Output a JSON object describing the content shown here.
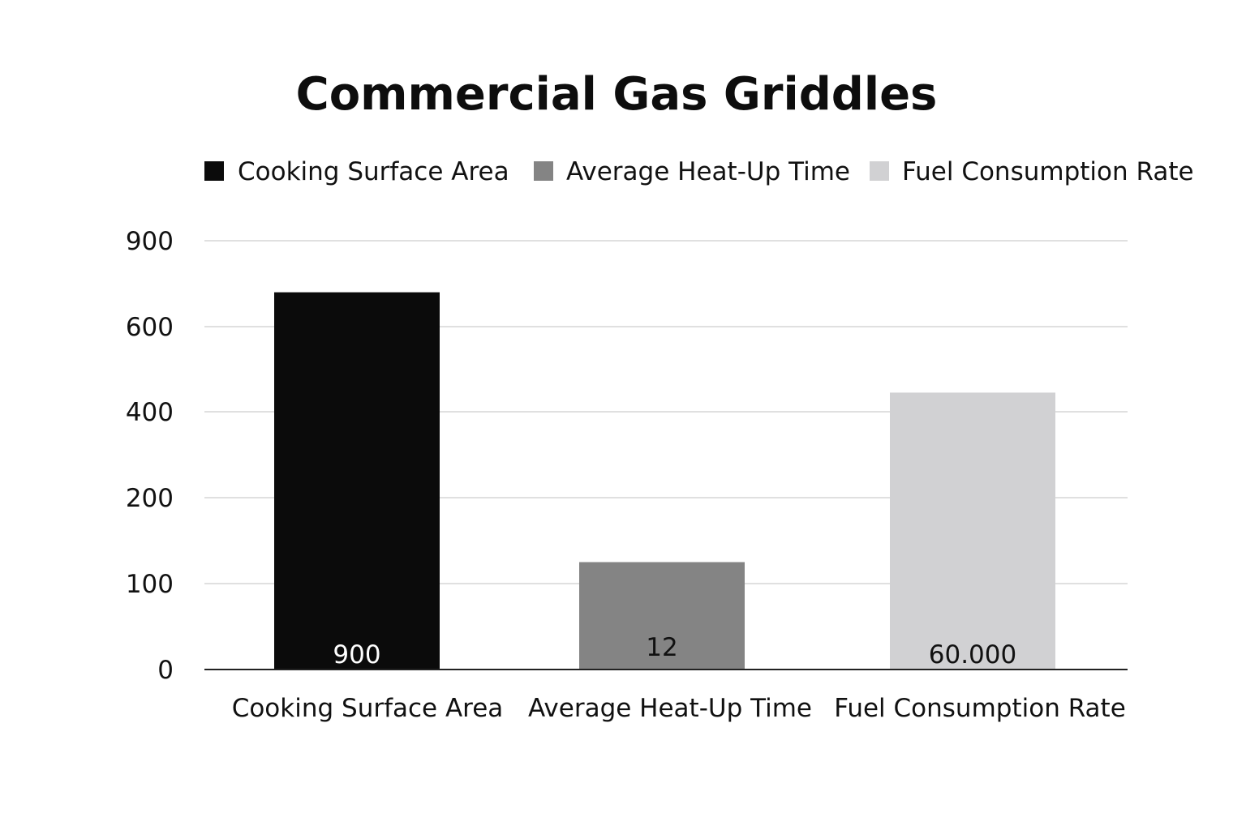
{
  "chart_data": {
    "type": "bar",
    "title": "Commercial Gas Griddles",
    "xlabel": "",
    "ylabel": "",
    "categories": [
      "Cooking Surface Area",
      "Average Heat-Up Time",
      "Fuel Consumption Rate"
    ],
    "series": [
      {
        "name": "Cooking Surface Area",
        "category": "Cooking Surface Area",
        "value": 720,
        "label": "900",
        "color": "#0b0b0b",
        "label_color": "#ffffff"
      },
      {
        "name": "Average Heat-Up Time",
        "category": "Average Heat-Up Time",
        "value": 125,
        "label": "12",
        "color": "#848484",
        "label_color": "#111111"
      },
      {
        "name": "Fuel Consumption Rate",
        "category": "Fuel Consumption Rate",
        "value": 445,
        "label": "60.000",
        "color": "#d1d1d3",
        "label_color": "#111111"
      }
    ],
    "y_ticks": [
      {
        "value": 0,
        "label": "0"
      },
      {
        "value": 100,
        "label": "100"
      },
      {
        "value": 200,
        "label": "200"
      },
      {
        "value": 400,
        "label": "400"
      },
      {
        "value": 600,
        "label": "600"
      },
      {
        "value": 900,
        "label": "900"
      }
    ],
    "ylim": [
      0,
      900
    ],
    "grid": true,
    "legend_position": "top"
  }
}
